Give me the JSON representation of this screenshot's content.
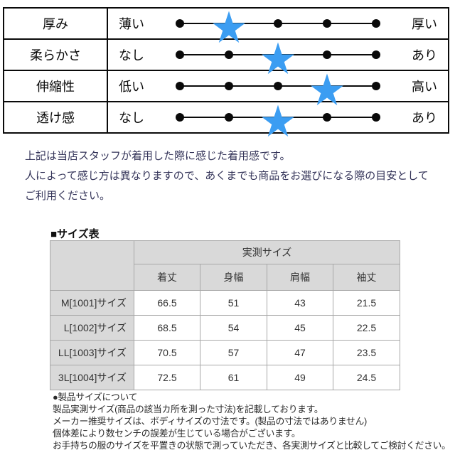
{
  "attribute_table": {
    "scale_points": 5,
    "star_color": "#3b9df2",
    "rows": [
      {
        "label": "厚み",
        "left": "薄い",
        "right": "厚い",
        "rating": 2
      },
      {
        "label": "柔らかさ",
        "left": "なし",
        "right": "あり",
        "rating": 3
      },
      {
        "label": "伸縮性",
        "left": "低い",
        "right": "高い",
        "rating": 4
      },
      {
        "label": "透け感",
        "left": "なし",
        "right": "あり",
        "rating": 3
      }
    ]
  },
  "notice": {
    "lines": [
      "上記は当店スタッフが着用した際に感じた着用感です。",
      "人によって感じ方は異なりますので、あくまでも商品をお選びになる際の目安として",
      "ご利用ください。"
    ]
  },
  "size_section": {
    "heading": "■サイズ表",
    "group_header": "実測サイズ",
    "columns": [
      "着丈",
      "身幅",
      "肩幅",
      "袖丈"
    ],
    "rows": [
      {
        "size": "M[1001]サイズ",
        "values": [
          "66.5",
          "51",
          "43",
          "21.5"
        ]
      },
      {
        "size": "L[1002]サイズ",
        "values": [
          "68.5",
          "54",
          "45",
          "22.5"
        ]
      },
      {
        "size": "LL[1003]サイズ",
        "values": [
          "70.5",
          "57",
          "47",
          "23.5"
        ]
      },
      {
        "size": "3L[1004]サイズ",
        "values": [
          "72.5",
          "61",
          "49",
          "24.5"
        ]
      }
    ]
  },
  "product_notes": {
    "lines": [
      "●製品サイズについて",
      "製品実測サイズ(商品の該当カ所を測った寸法)を記載しております。",
      "メーカー推奨サイズは、ボディサイズの寸法です。(製品の寸法ではありません)",
      "個体差により数センチの誤差が生じている場合がございます。",
      "お手持ちの服のサイズを平置きの状態で測っていただき、各実測サイズと比較してご検討ください。"
    ]
  },
  "colors": {
    "star_blue": "#3b9df2",
    "table_border_black": "#0a0a0a",
    "size_table_border": "#a8a8a8",
    "size_table_header_bg": "#d9d9d9",
    "notice_text": "#35355a"
  }
}
